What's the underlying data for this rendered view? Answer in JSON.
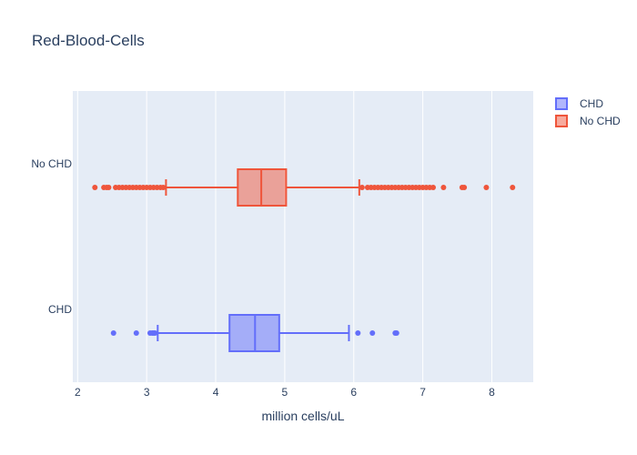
{
  "chart_data": {
    "type": "box",
    "orientation": "horizontal",
    "title": "Red-Blood-Cells",
    "xlabel": "million cells/uL",
    "ylabel": "",
    "xlim": [
      1.93,
      8.6
    ],
    "xticks": [
      2,
      3,
      4,
      5,
      6,
      7,
      8
    ],
    "categories": [
      "CHD",
      "No CHD"
    ],
    "legend_position": "top-right",
    "grid": true,
    "series": [
      {
        "name": "CHD",
        "color": "#636efa",
        "fill": "rgba(99,110,250,0.5)",
        "q1": 4.2,
        "median": 4.57,
        "q3": 4.92,
        "lowerfence": 3.16,
        "upperfence": 5.93,
        "outliers": [
          2.52,
          2.85,
          3.05,
          3.08,
          3.1,
          3.12,
          6.06,
          6.27,
          6.6,
          6.62
        ]
      },
      {
        "name": "No CHD",
        "color": "#ef553b",
        "fill": "rgba(239,85,59,0.5)",
        "q1": 4.32,
        "median": 4.66,
        "q3": 5.02,
        "lowerfence": 3.28,
        "upperfence": 6.08,
        "outliers": [
          2.25,
          2.38,
          2.42,
          2.45,
          2.55,
          2.6,
          2.65,
          2.7,
          2.75,
          2.8,
          2.85,
          2.9,
          2.95,
          3.0,
          3.05,
          3.1,
          3.15,
          3.2,
          3.24,
          6.12,
          6.2,
          6.25,
          6.3,
          6.35,
          6.4,
          6.45,
          6.5,
          6.55,
          6.6,
          6.65,
          6.7,
          6.75,
          6.8,
          6.85,
          6.9,
          6.95,
          7.0,
          7.05,
          7.1,
          7.15,
          7.3,
          7.57,
          7.6,
          7.92,
          8.3
        ]
      }
    ]
  }
}
